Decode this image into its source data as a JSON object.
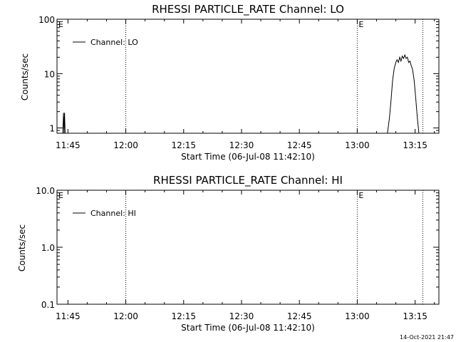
{
  "footer": {
    "timestamp": "14-Oct-2021 21:47"
  },
  "chart_data": [
    {
      "type": "line",
      "title": "RHESSI PARTICLE_RATE Channel: LO",
      "xlabel": "Start Time (06-Jul-08 11:42:10)",
      "ylabel": "Counts/sec",
      "yscale": "log",
      "ylim": [
        0.8,
        100
      ],
      "xlim": [
        "11:42:10",
        "13:21:10"
      ],
      "x_ticks": [
        "11:45",
        "12:00",
        "12:15",
        "12:30",
        "12:45",
        "13:00",
        "13:15"
      ],
      "y_ticks": [
        "1",
        "10",
        "100"
      ],
      "legend": "top-left",
      "markers": [
        {
          "time": "11:42:10",
          "label": "E"
        },
        {
          "time": "12:00:00",
          "label": ""
        },
        {
          "time": "13:00:00",
          "label": "E"
        },
        {
          "time": "13:17:00",
          "label": ""
        }
      ],
      "series": [
        {
          "name": "Channel: LO",
          "points": [
            [
              "11:42:10",
              0.8
            ],
            [
              "11:43:40",
              0.8
            ],
            [
              "11:43:52",
              1.9
            ],
            [
              "11:44:00",
              0.8
            ],
            [
              "11:44:08",
              1.9
            ],
            [
              "11:44:16",
              0.8
            ],
            [
              "13:07:50",
              0.8
            ],
            [
              "13:08:20",
              1.5
            ],
            [
              "13:08:45",
              3.2
            ],
            [
              "13:09:10",
              7.5
            ],
            [
              "13:09:35",
              12.5
            ],
            [
              "13:10:00",
              16
            ],
            [
              "13:10:20",
              18
            ],
            [
              "13:10:40",
              16
            ],
            [
              "13:11:00",
              20
            ],
            [
              "13:11:20",
              17
            ],
            [
              "13:11:40",
              21
            ],
            [
              "13:12:00",
              19
            ],
            [
              "13:12:20",
              22
            ],
            [
              "13:12:40",
              19
            ],
            [
              "13:13:00",
              20
            ],
            [
              "13:13:20",
              16
            ],
            [
              "13:13:40",
              17
            ],
            [
              "13:14:00",
              14
            ],
            [
              "13:14:20",
              12
            ],
            [
              "13:14:45",
              7.5
            ],
            [
              "13:15:10",
              3.5
            ],
            [
              "13:15:35",
              1.5
            ],
            [
              "13:16:00",
              0.8
            ],
            [
              "13:21:10",
              0.8
            ]
          ]
        }
      ]
    },
    {
      "type": "line",
      "title": "RHESSI PARTICLE_RATE Channel: HI",
      "xlabel": "Start Time (06-Jul-08 11:42:10)",
      "ylabel": "Counts/sec",
      "yscale": "log",
      "ylim": [
        0.1,
        10
      ],
      "xlim": [
        "11:42:10",
        "13:21:10"
      ],
      "x_ticks": [
        "11:45",
        "12:00",
        "12:15",
        "12:30",
        "12:45",
        "13:00",
        "13:15"
      ],
      "y_ticks": [
        "0.1",
        "1.0",
        "10.0"
      ],
      "legend": "top-left",
      "markers": [
        {
          "time": "11:42:10",
          "label": "E"
        },
        {
          "time": "12:00:00",
          "label": ""
        },
        {
          "time": "13:00:00",
          "label": "E"
        },
        {
          "time": "13:17:00",
          "label": ""
        }
      ],
      "series": [
        {
          "name": "Channel: HI",
          "points": []
        }
      ]
    }
  ]
}
